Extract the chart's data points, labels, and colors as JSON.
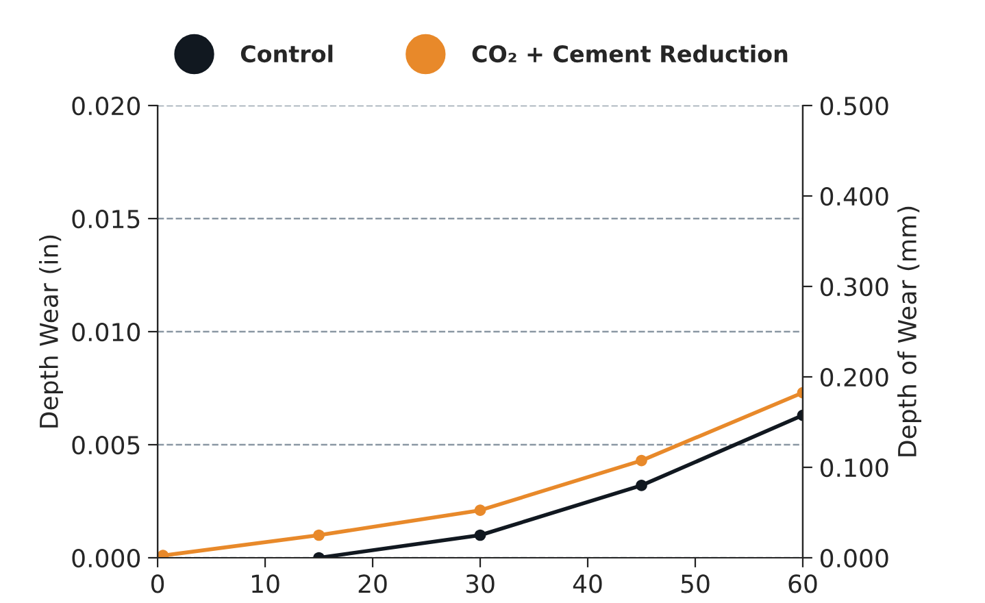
{
  "chart_data": {
    "type": "line",
    "ylabel": "Depth Wear (in)",
    "y2label": "Depth of Wear (mm)",
    "xlim": [
      0,
      60
    ],
    "xticks": [
      0,
      10,
      20,
      30,
      40,
      50,
      60
    ],
    "ylim": [
      0,
      0.02
    ],
    "yticks": [
      {
        "value": 0,
        "label": "0.000"
      },
      {
        "value": 0.005,
        "label": "0.005"
      },
      {
        "value": 0.01,
        "label": "0.010"
      },
      {
        "value": 0.015,
        "label": "0.015"
      },
      {
        "value": 0.02,
        "label": "0.020"
      }
    ],
    "y2lim": [
      0,
      0.5
    ],
    "y2ticks": [
      {
        "value": 0,
        "label": "0.000"
      },
      {
        "value": 0.1,
        "label": "0.100"
      },
      {
        "value": 0.2,
        "label": "0.200"
      },
      {
        "value": 0.3,
        "label": "0.300"
      },
      {
        "value": 0.4,
        "label": "0.400"
      },
      {
        "value": 0.5,
        "label": "0.500"
      }
    ],
    "grid": "y",
    "legend": "top",
    "marker": "circle",
    "line_style": "solid",
    "series": [
      {
        "name": "Control",
        "color": "#111820",
        "x": [
          15,
          30,
          45,
          60
        ],
        "values": [
          0,
          0.001,
          0.0032,
          0.0063
        ]
      },
      {
        "name": "CO₂ + Cement Reduction",
        "color": "#e8892a",
        "x": [
          0.5,
          15,
          30,
          45,
          60
        ],
        "values": [
          0.0001,
          0.001,
          0.0021,
          0.0043,
          0.0073
        ]
      }
    ]
  }
}
